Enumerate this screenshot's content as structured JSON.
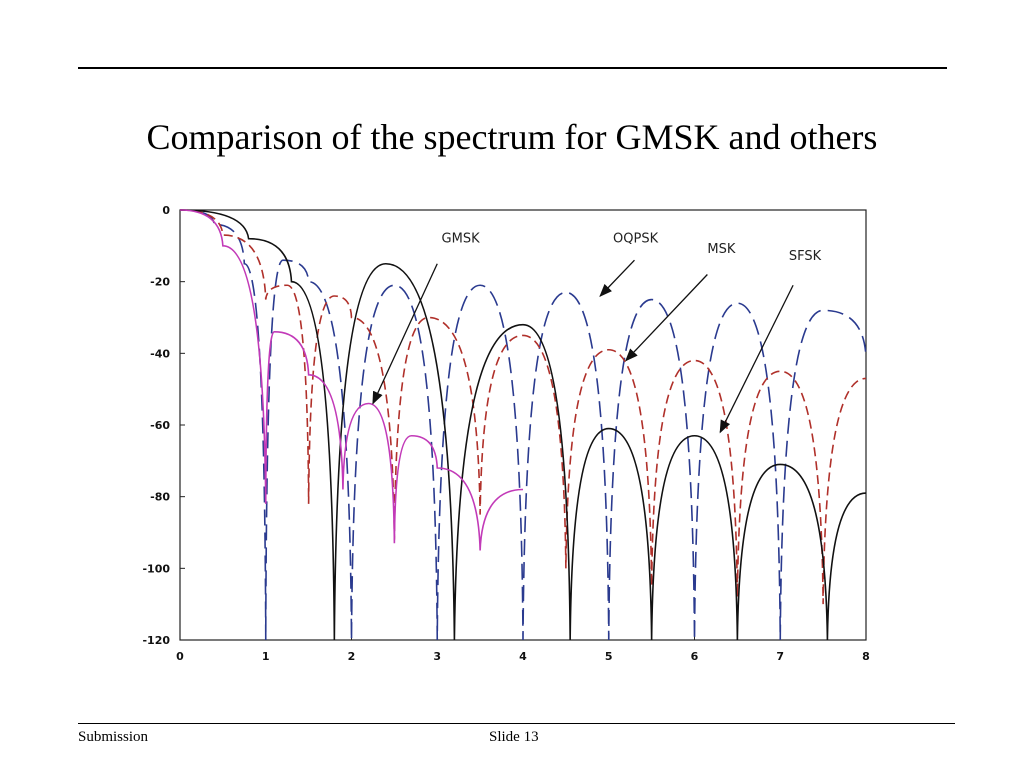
{
  "slide": {
    "title": "Comparison of the spectrum for GMSK and others",
    "footer_left": "Submission",
    "footer_center": "Slide 13"
  },
  "chart_data": {
    "type": "line",
    "xlim": [
      0,
      8
    ],
    "ylim": [
      -120,
      0
    ],
    "x_ticks": [
      "0",
      "1",
      "2",
      "3",
      "4",
      "5",
      "6",
      "7",
      "8"
    ],
    "y_ticks": [
      "0",
      "-20",
      "-40",
      "-60",
      "-80",
      "-100",
      "-120"
    ],
    "grid": false,
    "legend": "none",
    "series": [
      {
        "color": "#2a3a8f",
        "dash": "long-dash",
        "null_depth": -120,
        "points": [
          [
            0,
            0
          ],
          [
            0.4,
            -4
          ],
          [
            0.75,
            -15
          ],
          [
            1.0,
            -120
          ],
          [
            1.2,
            -14
          ],
          [
            1.5,
            -20
          ],
          [
            2.0,
            -120
          ],
          [
            2.5,
            -21
          ],
          [
            3.0,
            -120
          ],
          [
            3.5,
            -21
          ],
          [
            4.0,
            -120
          ],
          [
            4.5,
            -23
          ],
          [
            5.0,
            -120
          ],
          [
            5.5,
            -25
          ],
          [
            6.0,
            -120
          ],
          [
            6.5,
            -26
          ],
          [
            7.0,
            -120
          ],
          [
            7.5,
            -28
          ],
          [
            8.0,
            -41
          ]
        ]
      },
      {
        "color": "#b0302a",
        "dash": "dash",
        "null_depth": -82,
        "points": [
          [
            0,
            0
          ],
          [
            0.5,
            -7
          ],
          [
            1.0,
            -25
          ],
          [
            1.25,
            -21
          ],
          [
            1.5,
            -82
          ],
          [
            1.8,
            -24
          ],
          [
            2.0,
            -30
          ],
          [
            2.5,
            -92
          ],
          [
            2.9,
            -30
          ],
          [
            3.5,
            -85
          ],
          [
            4.0,
            -35
          ],
          [
            4.5,
            -100
          ],
          [
            5.0,
            -39
          ],
          [
            5.5,
            -105
          ],
          [
            6.0,
            -42
          ],
          [
            6.5,
            -108
          ],
          [
            7.0,
            -45
          ],
          [
            7.5,
            -110
          ],
          [
            8.0,
            -47
          ]
        ]
      },
      {
        "color": "#111111",
        "dash": "solid",
        "null_depth": -120,
        "points": [
          [
            0,
            0
          ],
          [
            0.8,
            -8
          ],
          [
            1.3,
            -20
          ],
          [
            1.8,
            -120
          ],
          [
            2.4,
            -15
          ],
          [
            3.2,
            -120
          ],
          [
            4.0,
            -32
          ],
          [
            4.55,
            -120
          ],
          [
            5.0,
            -61
          ],
          [
            5.5,
            -120
          ],
          [
            6.0,
            -63
          ],
          [
            6.5,
            -120
          ],
          [
            7.0,
            -71
          ],
          [
            7.55,
            -120
          ],
          [
            8.0,
            -79
          ]
        ]
      },
      {
        "color": "#c23ab8",
        "dash": "solid",
        "null_depth": -82,
        "points": [
          [
            0,
            0
          ],
          [
            0.5,
            -10
          ],
          [
            1.0,
            -82
          ],
          [
            1.1,
            -34
          ],
          [
            1.5,
            -46
          ],
          [
            1.9,
            -78
          ],
          [
            2.2,
            -54
          ],
          [
            2.5,
            -93
          ],
          [
            2.7,
            -63
          ],
          [
            3.0,
            -72
          ],
          [
            3.5,
            -95
          ],
          [
            4.0,
            -78
          ]
        ]
      }
    ],
    "annotations": [
      {
        "label": "GMSK",
        "text_x": 3.05,
        "text_y": -9,
        "arrow_from": [
          3.0,
          -15
        ],
        "arrow_to": [
          2.25,
          -54
        ]
      },
      {
        "label": "OQPSK",
        "text_x": 5.05,
        "text_y": -9,
        "arrow_from": [
          5.3,
          -14
        ],
        "arrow_to": [
          4.9,
          -24
        ]
      },
      {
        "label": "MSK",
        "text_x": 6.15,
        "text_y": -12,
        "arrow_from": [
          6.15,
          -18
        ],
        "arrow_to": [
          5.2,
          -42
        ]
      },
      {
        "label": "SFSK",
        "text_x": 7.1,
        "text_y": -14,
        "arrow_from": [
          7.15,
          -21
        ],
        "arrow_to": [
          6.3,
          -62
        ]
      }
    ]
  }
}
